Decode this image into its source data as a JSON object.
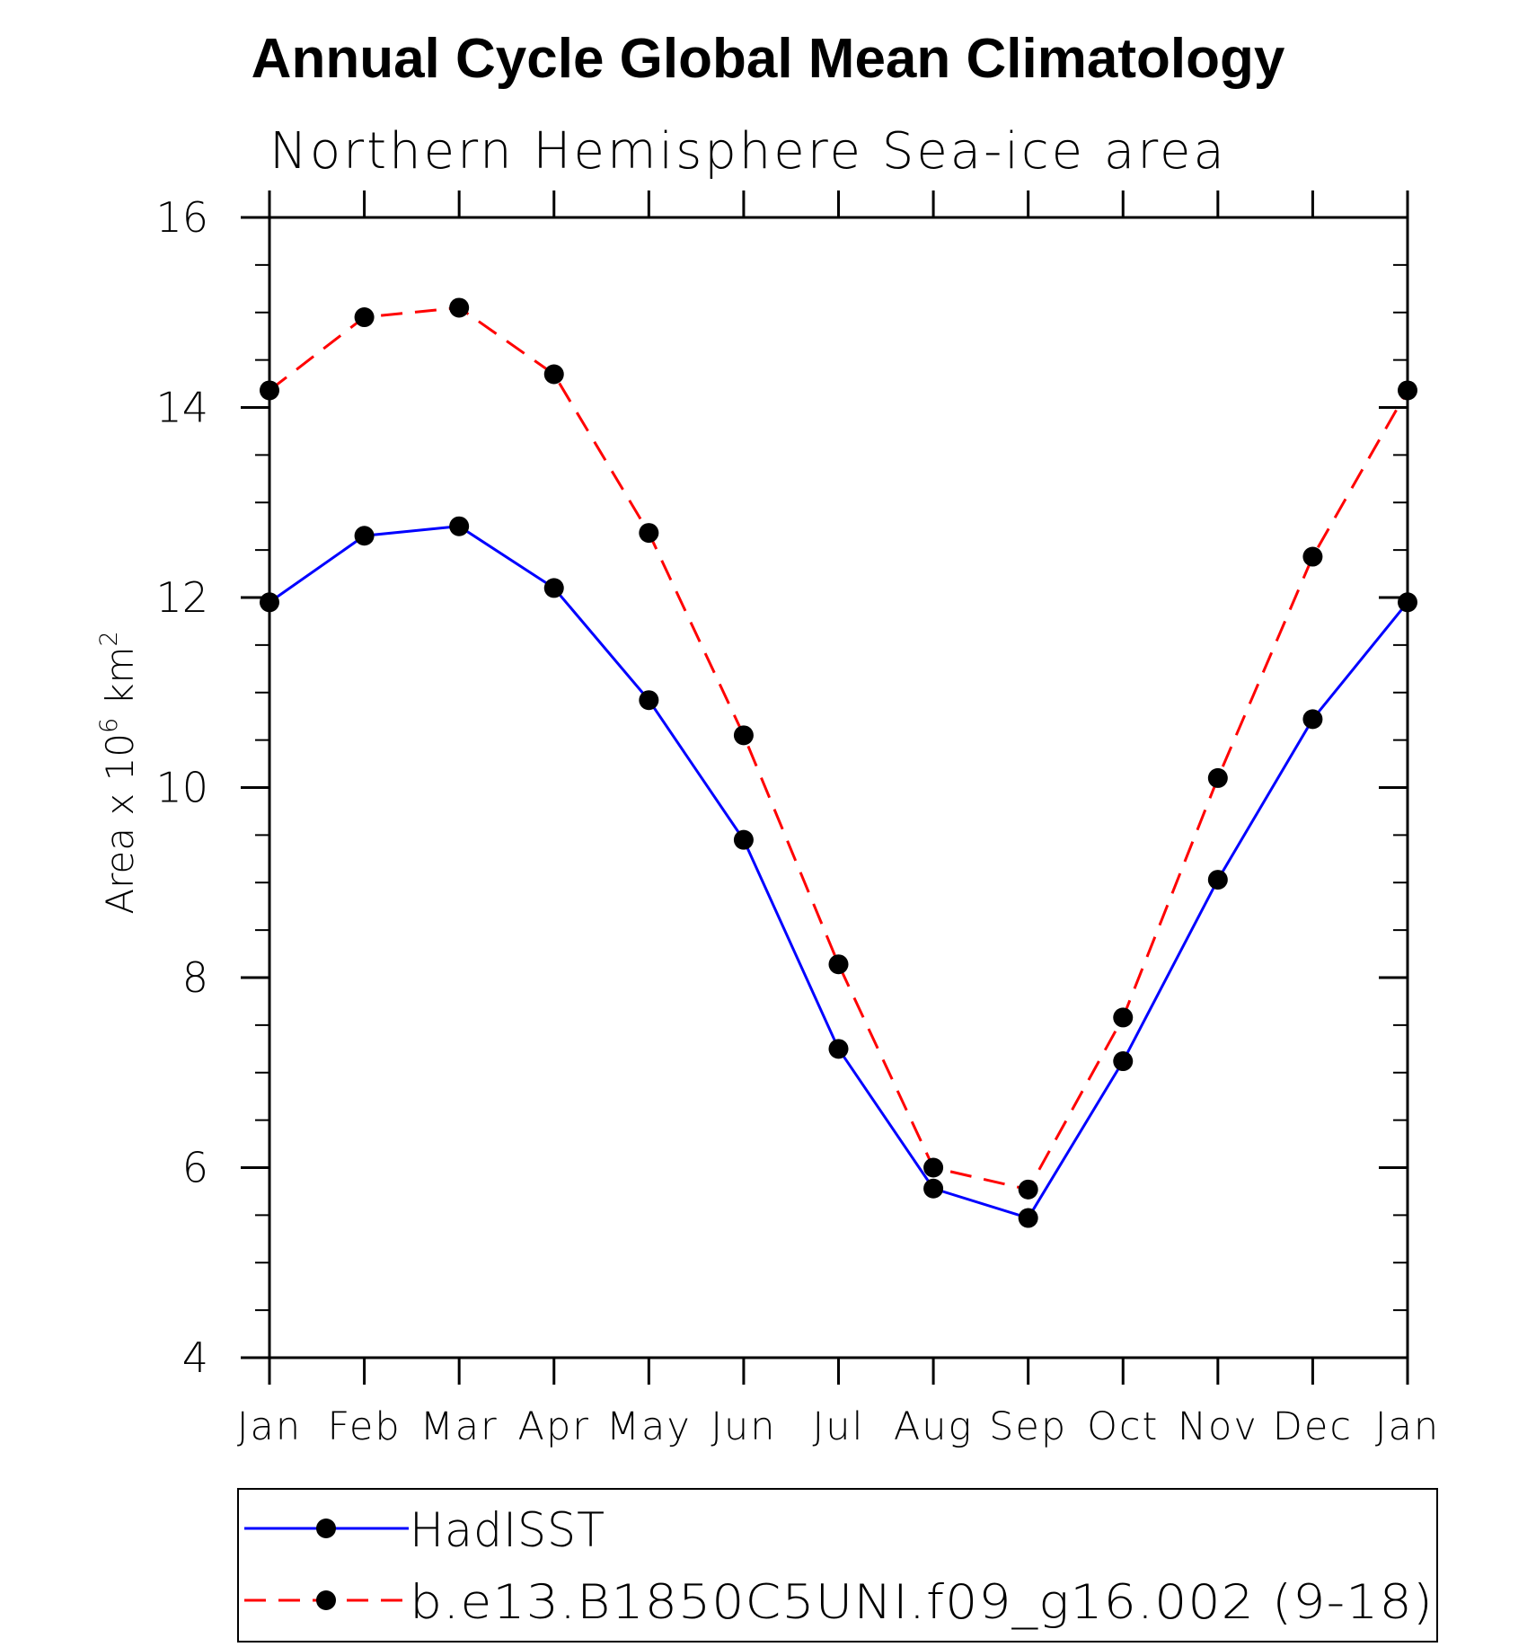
{
  "chart_data": {
    "type": "line",
    "title": "Annual Cycle Global Mean Climatology",
    "subtitle": "Northern Hemisphere Sea-ice area",
    "ylabel": "Area x 10",
    "ylabel_sup": "6",
    "ylabel_unit": "km",
    "ylabel_unit_sup": "2",
    "xlabel": "",
    "categories": [
      "Jan",
      "Feb",
      "Mar",
      "Apr",
      "May",
      "Jun",
      "Jul",
      "Aug",
      "Sep",
      "Oct",
      "Nov",
      "Dec",
      "Jan"
    ],
    "ylim": [
      4,
      16
    ],
    "yticks": [
      "4",
      "6",
      "8",
      "10",
      "12",
      "14",
      "16"
    ],
    "series": [
      {
        "name": "HadISST",
        "color": "#0000ff",
        "dash": false,
        "values": [
          11.95,
          12.65,
          12.75,
          12.1,
          10.92,
          9.45,
          7.25,
          5.78,
          5.47,
          7.12,
          9.03,
          10.72,
          11.95
        ]
      },
      {
        "name": "b.e13.B1850C5UNI.f09_g16.002 (9-18)",
        "color": "#ff0000",
        "dash": true,
        "values": [
          14.18,
          14.95,
          15.05,
          14.35,
          12.68,
          10.55,
          8.14,
          6.0,
          5.77,
          7.58,
          10.1,
          12.43,
          14.18
        ]
      }
    ],
    "marker_color": "#000000",
    "legend_position": "bottom"
  }
}
